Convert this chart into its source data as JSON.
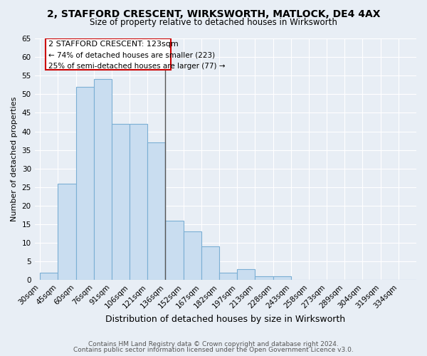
{
  "title": "2, STAFFORD CRESCENT, WIRKSWORTH, MATLOCK, DE4 4AX",
  "subtitle": "Size of property relative to detached houses in Wirksworth",
  "xlabel": "Distribution of detached houses by size in Wirksworth",
  "ylabel": "Number of detached properties",
  "bar_labels": [
    "30sqm",
    "45sqm",
    "60sqm",
    "76sqm",
    "91sqm",
    "106sqm",
    "121sqm",
    "136sqm",
    "152sqm",
    "167sqm",
    "182sqm",
    "197sqm",
    "213sqm",
    "228sqm",
    "243sqm",
    "258sqm",
    "273sqm",
    "289sqm",
    "304sqm",
    "319sqm",
    "334sqm"
  ],
  "bar_values": [
    2,
    26,
    52,
    54,
    42,
    42,
    37,
    16,
    13,
    9,
    2,
    3,
    1,
    1,
    0,
    0,
    0,
    0,
    0,
    0,
    0
  ],
  "bar_color": "#c9ddf0",
  "bar_edge_color": "#7bafd4",
  "ylim": [
    0,
    65
  ],
  "yticks": [
    0,
    5,
    10,
    15,
    20,
    25,
    30,
    35,
    40,
    45,
    50,
    55,
    60,
    65
  ],
  "annotation_title": "2 STAFFORD CRESCENT: 123sqm",
  "annotation_line1": "← 74% of detached houses are smaller (223)",
  "annotation_line2": "25% of semi-detached houses are larger (77) →",
  "annotation_box_color": "#ffffff",
  "annotation_box_edge": "#cc0000",
  "vline_color": "#555555",
  "vline_x_index": 7,
  "footer_line1": "Contains HM Land Registry data © Crown copyright and database right 2024.",
  "footer_line2": "Contains public sector information licensed under the Open Government Licence v3.0.",
  "background_color": "#e8eef5",
  "grid_color": "#ffffff",
  "title_fontsize": 10,
  "subtitle_fontsize": 8.5,
  "ylabel_fontsize": 8,
  "xlabel_fontsize": 9,
  "tick_fontsize": 7.5,
  "footer_fontsize": 6.5
}
